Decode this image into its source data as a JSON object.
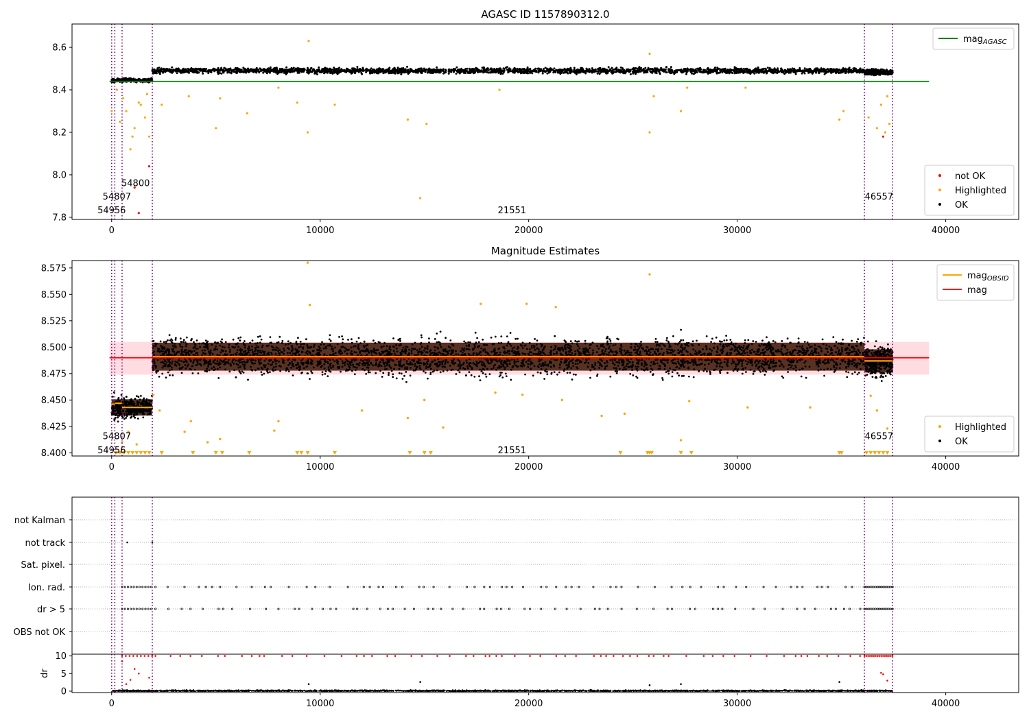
{
  "chart_data": [
    {
      "type": "scatter",
      "title": "AGASC ID 1157890312.0",
      "xlabel": "",
      "ylabel": "",
      "xlim": [
        -1900,
        43500
      ],
      "ylim": [
        7.79,
        8.71
      ],
      "xticks": [
        0,
        10000,
        20000,
        30000,
        40000
      ],
      "xtick_labels": [
        "0",
        "10000",
        "20000",
        "30000",
        "40000"
      ],
      "yticks": [
        7.8,
        8.0,
        8.2,
        8.4,
        8.6
      ],
      "ytick_labels": [
        "7.8",
        "8.0",
        "8.2",
        "8.4",
        "8.6"
      ],
      "grid": false,
      "obsid_boundaries": [
        0,
        150,
        500,
        1950,
        36100,
        37450
      ],
      "obsid_labels": [
        {
          "text": "54956",
          "x": 0,
          "y": 7.835
        },
        {
          "text": "54807",
          "x": 250,
          "y": 7.9
        },
        {
          "text": "54800",
          "x": 1150,
          "y": 7.963
        },
        {
          "text": "21551",
          "x": 19200,
          "y": 7.835
        },
        {
          "text": "46557",
          "x": 36800,
          "y": 7.9
        }
      ],
      "reference_lines": [
        {
          "name": "mag_AGASC",
          "y": 8.44,
          "x": [
            -100,
            39200
          ],
          "color": "#008000"
        }
      ],
      "segments": [
        {
          "x": [
            0,
            1950
          ],
          "mean": 8.445,
          "spread": 0.006
        },
        {
          "x": [
            1950,
            36100
          ],
          "mean": 8.49,
          "spread": 0.009
        },
        {
          "x": [
            36100,
            37450
          ],
          "mean": 8.483,
          "spread": 0.009
        }
      ],
      "outliers": [
        {
          "x": 0,
          "y": 8.3
        },
        {
          "x": 250,
          "y": 8.4
        },
        {
          "x": 400,
          "y": 8.25
        },
        {
          "x": 550,
          "y": 8.36
        },
        {
          "x": 700,
          "y": 8.3
        },
        {
          "x": 900,
          "y": 8.12
        },
        {
          "x": 1000,
          "y": 8.18
        },
        {
          "x": 1100,
          "y": 8.22
        },
        {
          "x": 1300,
          "y": 8.34
        },
        {
          "x": 1400,
          "y": 8.33
        },
        {
          "x": 1600,
          "y": 8.27
        },
        {
          "x": 1700,
          "y": 8.38
        },
        {
          "x": 1800,
          "y": 8.18
        },
        {
          "x": 2400,
          "y": 8.33
        },
        {
          "x": 3700,
          "y": 8.37
        },
        {
          "x": 5000,
          "y": 8.22
        },
        {
          "x": 5200,
          "y": 8.36
        },
        {
          "x": 6500,
          "y": 8.29
        },
        {
          "x": 8000,
          "y": 8.41
        },
        {
          "x": 8900,
          "y": 8.34
        },
        {
          "x": 9400,
          "y": 8.2
        },
        {
          "x": 9450,
          "y": 8.63
        },
        {
          "x": 10700,
          "y": 8.33
        },
        {
          "x": 14200,
          "y": 8.26
        },
        {
          "x": 14800,
          "y": 7.89
        },
        {
          "x": 15100,
          "y": 8.24
        },
        {
          "x": 18600,
          "y": 8.4
        },
        {
          "x": 25800,
          "y": 8.57
        },
        {
          "x": 25800,
          "y": 8.2
        },
        {
          "x": 26000,
          "y": 8.37
        },
        {
          "x": 27300,
          "y": 8.3
        },
        {
          "x": 27600,
          "y": 8.41
        },
        {
          "x": 30400,
          "y": 8.41
        },
        {
          "x": 34900,
          "y": 8.26
        },
        {
          "x": 35100,
          "y": 8.3
        },
        {
          "x": 36300,
          "y": 8.27
        },
        {
          "x": 36700,
          "y": 8.22
        },
        {
          "x": 36900,
          "y": 8.33
        },
        {
          "x": 37100,
          "y": 8.2
        },
        {
          "x": 37200,
          "y": 8.37
        },
        {
          "x": 37300,
          "y": 8.24
        }
      ],
      "not_ok_points": [
        {
          "x": 1100,
          "y": 7.94
        },
        {
          "x": 1300,
          "y": 7.82
        },
        {
          "x": 1800,
          "y": 8.04
        },
        {
          "x": 37000,
          "y": 8.18
        }
      ],
      "legends": [
        {
          "placement": "upper right",
          "entries": [
            {
              "label": "mag",
              "subscript": "AGASC",
              "marker": "line",
              "color": "#008000"
            }
          ]
        },
        {
          "placement": "lower right",
          "entries": [
            {
              "label": "not OK",
              "marker": "dot",
              "color": "#ff0000"
            },
            {
              "label": "Highlighted",
              "marker": "dot",
              "color": "#ffa500"
            },
            {
              "label": "OK",
              "marker": "dot",
              "color": "#000000"
            }
          ]
        }
      ]
    },
    {
      "type": "scatter",
      "title": "Magnitude Estimates",
      "xlabel": "",
      "ylabel": "",
      "xlim": [
        -1900,
        43500
      ],
      "ylim": [
        8.397,
        8.582
      ],
      "xticks": [
        0,
        10000,
        20000,
        30000,
        40000
      ],
      "xtick_labels": [
        "0",
        "10000",
        "20000",
        "30000",
        "40000"
      ],
      "yticks": [
        8.4,
        8.425,
        8.45,
        8.475,
        8.5,
        8.525,
        8.55,
        8.575
      ],
      "ytick_labels": [
        "8.400",
        "8.425",
        "8.450",
        "8.475",
        "8.500",
        "8.525",
        "8.550",
        "8.575"
      ],
      "grid": false,
      "obsid_boundaries": [
        0,
        150,
        500,
        1950,
        36100,
        37450
      ],
      "obsid_labels": [
        {
          "text": "54956",
          "x": 0,
          "y": 8.403
        },
        {
          "text": "54807",
          "x": 250,
          "y": 8.416
        },
        {
          "text": "21551",
          "x": 19200,
          "y": 8.403
        },
        {
          "text": "46557",
          "x": 36800,
          "y": 8.416
        }
      ],
      "mag_band": {
        "x": [
          -100,
          39200
        ],
        "low": 8.474,
        "high": 8.505,
        "color": "#ffc0cb"
      },
      "reference_lines": [
        {
          "name": "mag",
          "y": 8.49,
          "x": [
            -100,
            39200
          ],
          "color": "#ff0000"
        }
      ],
      "obsid_mag_lines": [
        {
          "x": [
            0,
            150
          ],
          "y": 8.446
        },
        {
          "x": [
            150,
            500
          ],
          "y": 8.447
        },
        {
          "x": [
            500,
            1950
          ],
          "y": 8.443
        },
        {
          "x": [
            1950,
            36100
          ],
          "y": 8.491
        },
        {
          "x": [
            36100,
            37450
          ],
          "y": 8.487
        }
      ],
      "segments": [
        {
          "x": [
            0,
            1950
          ],
          "mean": 8.443,
          "spread": 0.007
        },
        {
          "x": [
            1950,
            36100
          ],
          "mean": 8.491,
          "spread": 0.012
        },
        {
          "x": [
            36100,
            37450
          ],
          "mean": 8.487,
          "spread": 0.01
        }
      ],
      "highlighted_points": [
        {
          "x": 9400,
          "y": 8.58
        },
        {
          "x": 25800,
          "y": 8.569
        },
        {
          "x": 9500,
          "y": 8.54
        },
        {
          "x": 17700,
          "y": 8.541
        },
        {
          "x": 19900,
          "y": 8.541
        },
        {
          "x": 21300,
          "y": 8.538
        },
        {
          "x": 3800,
          "y": 8.43
        },
        {
          "x": 8000,
          "y": 8.43
        },
        {
          "x": 5200,
          "y": 8.413
        },
        {
          "x": 2000,
          "y": 8.455
        },
        {
          "x": 2300,
          "y": 8.44
        },
        {
          "x": 3500,
          "y": 8.42
        },
        {
          "x": 4600,
          "y": 8.41
        },
        {
          "x": 7800,
          "y": 8.421
        },
        {
          "x": 12000,
          "y": 8.44
        },
        {
          "x": 14200,
          "y": 8.433
        },
        {
          "x": 15000,
          "y": 8.45
        },
        {
          "x": 15900,
          "y": 8.424
        },
        {
          "x": 18400,
          "y": 8.457
        },
        {
          "x": 19700,
          "y": 8.455
        },
        {
          "x": 21600,
          "y": 8.45
        },
        {
          "x": 23500,
          "y": 8.435
        },
        {
          "x": 24600,
          "y": 8.437
        },
        {
          "x": 27300,
          "y": 8.412
        },
        {
          "x": 27700,
          "y": 8.449
        },
        {
          "x": 30500,
          "y": 8.443
        },
        {
          "x": 33500,
          "y": 8.443
        },
        {
          "x": 36400,
          "y": 8.454
        },
        {
          "x": 36700,
          "y": 8.44
        },
        {
          "x": 37200,
          "y": 8.423
        },
        {
          "x": 500,
          "y": 8.41
        },
        {
          "x": 800,
          "y": 8.42
        },
        {
          "x": 1200,
          "y": 8.408
        }
      ],
      "clipped_markers_x": [
        200,
        400,
        600,
        800,
        1000,
        1200,
        1400,
        1600,
        1800,
        2400,
        3900,
        5000,
        5300,
        6600,
        8900,
        9100,
        9400,
        10700,
        14300,
        15000,
        15300,
        24400,
        25700,
        25800,
        25900,
        27300,
        27800,
        34900,
        35000,
        36200,
        36400,
        36600,
        36800,
        37000,
        37200
      ],
      "legends": [
        {
          "placement": "upper right",
          "entries": [
            {
              "label": "mag",
              "subscript": "OBSID",
              "marker": "line",
              "color": "#ffa500"
            },
            {
              "label": "mag",
              "marker": "line",
              "color": "#ff0000"
            }
          ]
        },
        {
          "placement": "lower right",
          "entries": [
            {
              "label": "Highlighted",
              "marker": "dot",
              "color": "#ffa500"
            },
            {
              "label": "OK",
              "marker": "dot",
              "color": "#000000"
            }
          ]
        }
      ]
    },
    {
      "type": "scatter",
      "title": "",
      "xlabel": "",
      "ylabel": "",
      "xlim": [
        -1900,
        43500
      ],
      "categories": [
        "not Kalman",
        "not track",
        "Sat. pixel.",
        "Ion. rad.",
        "dr > 5",
        "OBS not OK"
      ],
      "grid": true,
      "obsid_boundaries": [
        0,
        150,
        500,
        1950,
        36100,
        37450
      ],
      "flag_points": {
        "not track": [
          750,
          1950
        ],
        "Ion. rad.": [
          500,
          36100,
          37450
        ],
        "dr > 5": [
          500,
          36100,
          37450
        ]
      }
    },
    {
      "type": "scatter",
      "title": "",
      "xlabel": "",
      "ylabel": "dr",
      "xlim": [
        -1900,
        43500
      ],
      "ylim": [
        -0.4,
        10.5
      ],
      "xticks": [
        0,
        10000,
        20000,
        30000,
        40000
      ],
      "xtick_labels": [
        "0",
        "10000",
        "20000",
        "30000",
        "40000"
      ],
      "yticks": [
        0,
        5,
        10
      ],
      "ytick_labels": [
        "0",
        "5",
        "10"
      ],
      "grid": false,
      "obsid_boundaries": [
        0,
        150,
        500,
        1950,
        36100,
        37450
      ],
      "baseline_dr": 0.3,
      "dr_clip_value": 10,
      "high_dr_points": [
        {
          "x": 500,
          "y": 8.5
        },
        {
          "x": 700,
          "y": 2.0
        },
        {
          "x": 900,
          "y": 3.2
        },
        {
          "x": 1100,
          "y": 6.3
        },
        {
          "x": 1300,
          "y": 5.0
        },
        {
          "x": 1800,
          "y": 3.8
        },
        {
          "x": 36900,
          "y": 5.2
        },
        {
          "x": 37000,
          "y": 4.8
        },
        {
          "x": 37200,
          "y": 3.0
        }
      ],
      "dr_outliers": [
        {
          "x": 9450,
          "y": 2.0
        },
        {
          "x": 14800,
          "y": 2.6
        },
        {
          "x": 25800,
          "y": 1.7
        },
        {
          "x": 27300,
          "y": 2.0
        },
        {
          "x": 34900,
          "y": 2.6
        }
      ]
    }
  ]
}
